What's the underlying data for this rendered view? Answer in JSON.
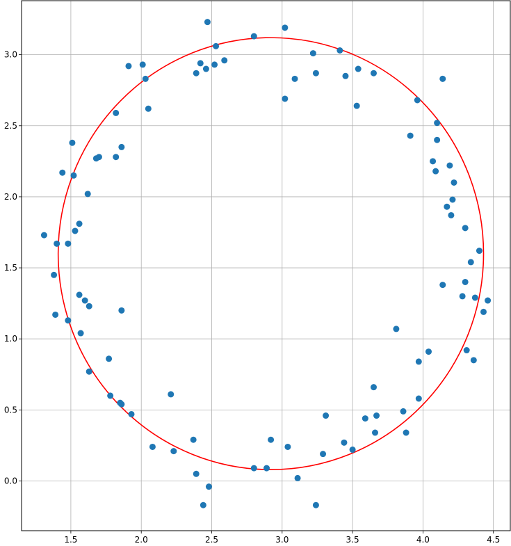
{
  "chart_data": {
    "type": "scatter",
    "title": "",
    "xlabel": "",
    "ylabel": "",
    "xlim": [
      1.15,
      4.62
    ],
    "ylim": [
      -0.35,
      3.38
    ],
    "xticks": [
      1.5,
      2.0,
      2.5,
      3.0,
      3.5,
      4.0,
      4.5
    ],
    "yticks": [
      0.0,
      0.5,
      1.0,
      1.5,
      2.0,
      2.5,
      3.0
    ],
    "xtick_labels": [
      "1.5",
      "2.0",
      "2.5",
      "3.0",
      "3.5",
      "4.0",
      "4.5"
    ],
    "ytick_labels": [
      "0.0",
      "0.5",
      "1.0",
      "1.5",
      "2.0",
      "2.5",
      "3.0"
    ],
    "grid": true,
    "legend": "none",
    "series": [
      {
        "kind": "scatter",
        "color": "#1f77b4",
        "points": [
          [
            1.31,
            1.73
          ],
          [
            1.38,
            1.45
          ],
          [
            1.39,
            1.17
          ],
          [
            1.4,
            1.67
          ],
          [
            1.44,
            2.17
          ],
          [
            1.48,
            1.67
          ],
          [
            1.48,
            1.13
          ],
          [
            1.51,
            2.38
          ],
          [
            1.52,
            2.15
          ],
          [
            1.53,
            1.76
          ],
          [
            1.56,
            1.81
          ],
          [
            1.56,
            1.31
          ],
          [
            1.57,
            1.04
          ],
          [
            1.6,
            1.27
          ],
          [
            1.62,
            2.02
          ],
          [
            1.63,
            1.23
          ],
          [
            1.63,
            0.77
          ],
          [
            1.68,
            2.27
          ],
          [
            1.7,
            2.28
          ],
          [
            1.77,
            0.86
          ],
          [
            1.78,
            0.6
          ],
          [
            1.82,
            2.59
          ],
          [
            1.82,
            2.28
          ],
          [
            1.85,
            0.55
          ],
          [
            1.86,
            0.54
          ],
          [
            1.86,
            2.35
          ],
          [
            1.86,
            1.2
          ],
          [
            1.91,
            2.92
          ],
          [
            1.93,
            0.47
          ],
          [
            2.01,
            2.93
          ],
          [
            2.03,
            2.83
          ],
          [
            2.05,
            2.62
          ],
          [
            2.08,
            0.24
          ],
          [
            2.21,
            0.61
          ],
          [
            2.23,
            0.21
          ],
          [
            2.37,
            0.29
          ],
          [
            2.39,
            0.05
          ],
          [
            2.39,
            2.87
          ],
          [
            2.42,
            2.94
          ],
          [
            2.44,
            -0.17
          ],
          [
            2.46,
            2.9
          ],
          [
            2.47,
            3.23
          ],
          [
            2.48,
            -0.04
          ],
          [
            2.52,
            2.93
          ],
          [
            2.53,
            3.06
          ],
          [
            2.59,
            2.96
          ],
          [
            2.8,
            3.13
          ],
          [
            2.8,
            0.09
          ],
          [
            2.89,
            0.09
          ],
          [
            2.92,
            0.29
          ],
          [
            3.02,
            3.19
          ],
          [
            3.02,
            2.69
          ],
          [
            3.04,
            0.24
          ],
          [
            3.09,
            2.83
          ],
          [
            3.11,
            0.02
          ],
          [
            3.22,
            3.01
          ],
          [
            3.24,
            2.87
          ],
          [
            3.24,
            -0.17
          ],
          [
            3.29,
            0.19
          ],
          [
            3.31,
            0.46
          ],
          [
            3.41,
            3.03
          ],
          [
            3.44,
            0.27
          ],
          [
            3.45,
            2.85
          ],
          [
            3.5,
            0.22
          ],
          [
            3.53,
            2.64
          ],
          [
            3.54,
            2.9
          ],
          [
            3.59,
            0.44
          ],
          [
            3.65,
            2.87
          ],
          [
            3.65,
            0.66
          ],
          [
            3.66,
            0.34
          ],
          [
            3.67,
            0.46
          ],
          [
            3.81,
            1.07
          ],
          [
            3.86,
            0.49
          ],
          [
            3.88,
            0.34
          ],
          [
            3.91,
            2.43
          ],
          [
            3.96,
            2.68
          ],
          [
            3.97,
            0.84
          ],
          [
            3.97,
            0.58
          ],
          [
            4.04,
            0.91
          ],
          [
            4.07,
            2.25
          ],
          [
            4.09,
            2.18
          ],
          [
            4.1,
            2.52
          ],
          [
            4.1,
            2.4
          ],
          [
            4.14,
            2.83
          ],
          [
            4.14,
            1.38
          ],
          [
            4.17,
            1.93
          ],
          [
            4.19,
            2.22
          ],
          [
            4.2,
            1.87
          ],
          [
            4.21,
            1.98
          ],
          [
            4.22,
            2.1
          ],
          [
            4.28,
            1.3
          ],
          [
            4.3,
            1.78
          ],
          [
            4.3,
            1.4
          ],
          [
            4.31,
            0.92
          ],
          [
            4.34,
            1.54
          ],
          [
            4.36,
            0.85
          ],
          [
            4.37,
            1.29
          ],
          [
            4.4,
            1.62
          ],
          [
            4.43,
            1.19
          ],
          [
            4.46,
            1.27
          ]
        ]
      },
      {
        "kind": "circle",
        "color": "#ff0000",
        "center": [
          2.92,
          1.6
        ],
        "radius_x": 1.51,
        "radius_y": 1.52
      }
    ]
  }
}
